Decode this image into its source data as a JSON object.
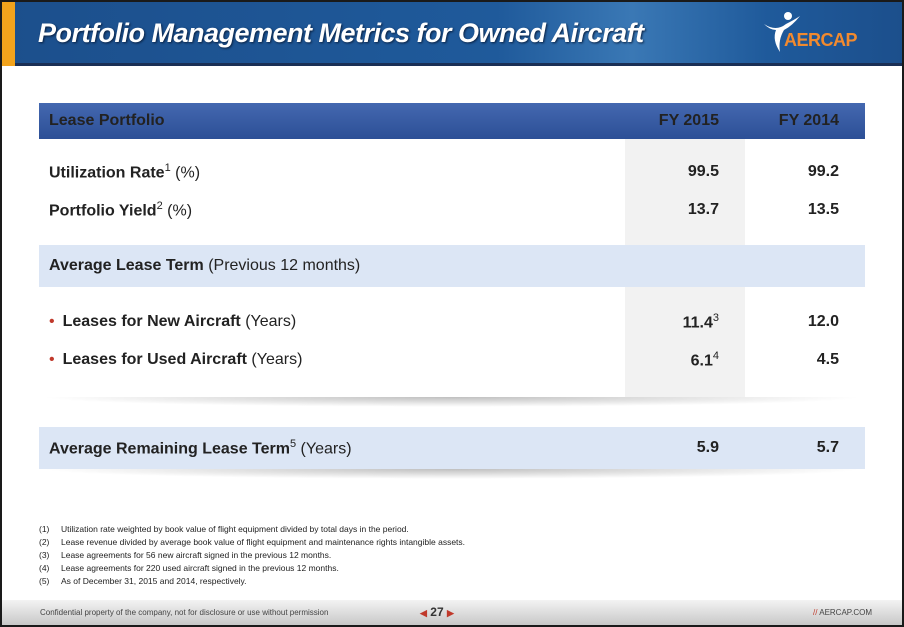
{
  "header": {
    "title": "Portfolio Management Metrics for Owned Aircraft",
    "logo_text": "AERCAP"
  },
  "table": {
    "headers": [
      "Lease Portfolio",
      "FY 2015",
      "FY 2014"
    ],
    "rows": [
      {
        "label": "Utilization Rate",
        "sup": "1",
        "unit": " (%)",
        "fy2015": "99.5",
        "fy2014": "99.2"
      },
      {
        "label": "Portfolio Yield",
        "sup": "2",
        "unit": " (%)",
        "fy2015": "13.7",
        "fy2014": "13.5"
      }
    ],
    "section": {
      "label": "Average Lease Term",
      "detail": " (Previous 12 months)"
    },
    "bullets": [
      {
        "label": "Leases for New Aircraft",
        "unit": " (Years)",
        "fy2015": "11.4",
        "fy2015_sup": "3",
        "fy2014": "12.0"
      },
      {
        "label": "Leases for Used Aircraft",
        "unit": " (Years)",
        "fy2015": "6.1",
        "fy2015_sup": "4",
        "fy2014": "4.5"
      }
    ],
    "remaining": {
      "label": "Average Remaining Lease Term",
      "sup": "5",
      "unit": " (Years)",
      "fy2015": "5.9",
      "fy2014": "5.7"
    }
  },
  "notes": [
    {
      "n": "(1)",
      "text": "Utilization rate weighted by book value of flight equipment divided by total days in the period."
    },
    {
      "n": "(2)",
      "text": "Lease revenue divided by average book value of flight equipment and maintenance rights intangible assets."
    },
    {
      "n": "(3)",
      "text": "Lease agreements for 56 new aircraft signed in the previous 12 months."
    },
    {
      "n": "(4)",
      "text": "Lease agreements for 220 used aircraft signed in the previous 12 months."
    },
    {
      "n": "(5)",
      "text": "As of December 31, 2015 and 2014, respectively."
    }
  ],
  "footer": {
    "confidential": "Confidential property of the company, not for disclosure or use without permission",
    "page": "27",
    "site_prefix": "//",
    "site": "AERCAP.COM"
  }
}
